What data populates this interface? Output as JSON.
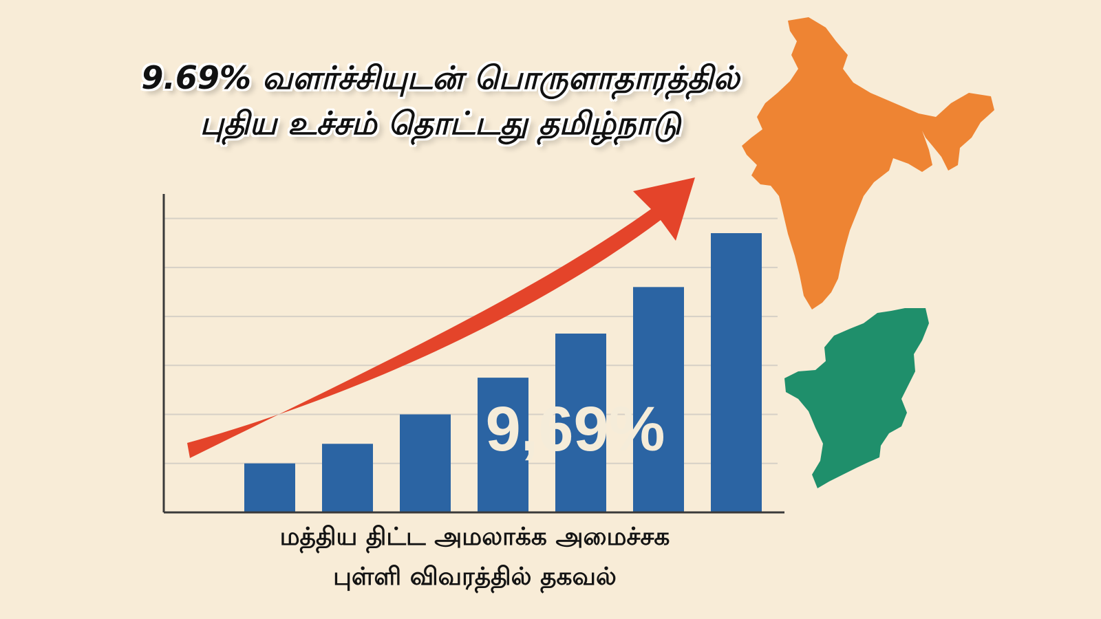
{
  "headline": {
    "line1": "9.69% வளர்ச்சியுடன் பொருளாதாரத்தில்",
    "line2": "புதிய உச்சம் தொட்டது தமிழ்நாடு"
  },
  "caption": {
    "line1": "மத்திய திட்ட அமலாக்க அமைச்சக",
    "line2": "புள்ளி விவரத்தில் தகவல்"
  },
  "chart_data": {
    "type": "bar",
    "title": "",
    "xlabel": "",
    "ylabel": "",
    "categories": [
      "",
      "",
      "",
      "",
      "",
      "",
      ""
    ],
    "values": [
      1.0,
      1.4,
      2.0,
      2.75,
      3.65,
      4.6,
      5.7
    ],
    "ylim": [
      0,
      6.5
    ],
    "grid": true,
    "legend": "none",
    "overlay_label": "9,69%",
    "trend_arrow": "up-right",
    "colors": {
      "bar": "#2b64a3",
      "arrow": "#e4442a",
      "gridline": "#d6d0c6",
      "axis": "#3a3a3a",
      "overlay_text": "#f5ecd9"
    }
  },
  "maps": {
    "india_color": "#ee8433",
    "tamilnadu_color": "#1f8f6b"
  }
}
